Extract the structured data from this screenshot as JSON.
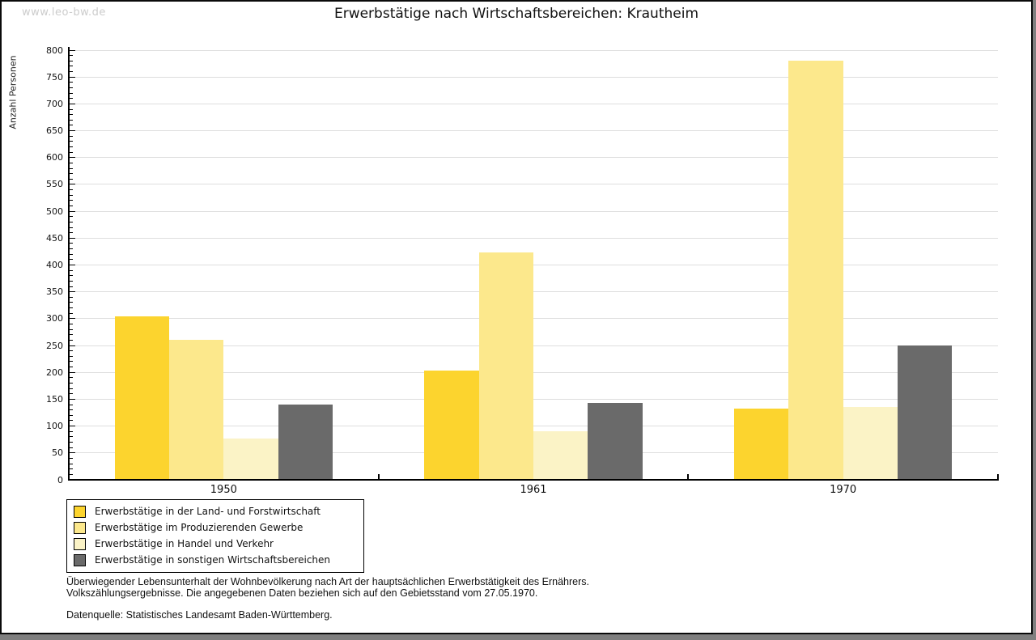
{
  "watermark": "www.leo-bw.de",
  "chart_data": {
    "type": "bar",
    "title": "Erwerbstätige nach Wirtschaftsbereichen: Krautheim",
    "ylabel": "Anzahl Personen",
    "xlabel": "",
    "categories": [
      "1950",
      "1961",
      "1970"
    ],
    "series": [
      {
        "name": "Erwerbstätige in der Land- und Forstwirtschaft",
        "color": "#FCD42E",
        "values": [
          305,
          204,
          132
        ]
      },
      {
        "name": "Erwerbstätige im Produzierenden Gewerbe",
        "color": "#FCE88C",
        "values": [
          260,
          423,
          780
        ]
      },
      {
        "name": "Erwerbstätige in Handel und Verkehr",
        "color": "#FBF3C6",
        "values": [
          77,
          91,
          135
        ]
      },
      {
        "name": "Erwerbstätige in sonstigen Wirtschaftsbereichen",
        "color": "#6A6A6A",
        "values": [
          140,
          143,
          250
        ]
      }
    ],
    "ylim": [
      0,
      800
    ],
    "ytick_step": 50,
    "minor_tick_step": 10,
    "grid": true,
    "legend_position": "bottom-left"
  },
  "footer": {
    "line1": "Überwiegender Lebensunterhalt der Wohnbevölkerung nach Art der hauptsächlichen Erwerbstätigkeit des Ernährers.",
    "line2": "Volkszählungsergebnisse. Die angegebenen Daten beziehen sich auf den Gebietsstand vom 27.05.1970.",
    "source": "Datenquelle: Statistisches Landesamt Baden-Württemberg."
  }
}
